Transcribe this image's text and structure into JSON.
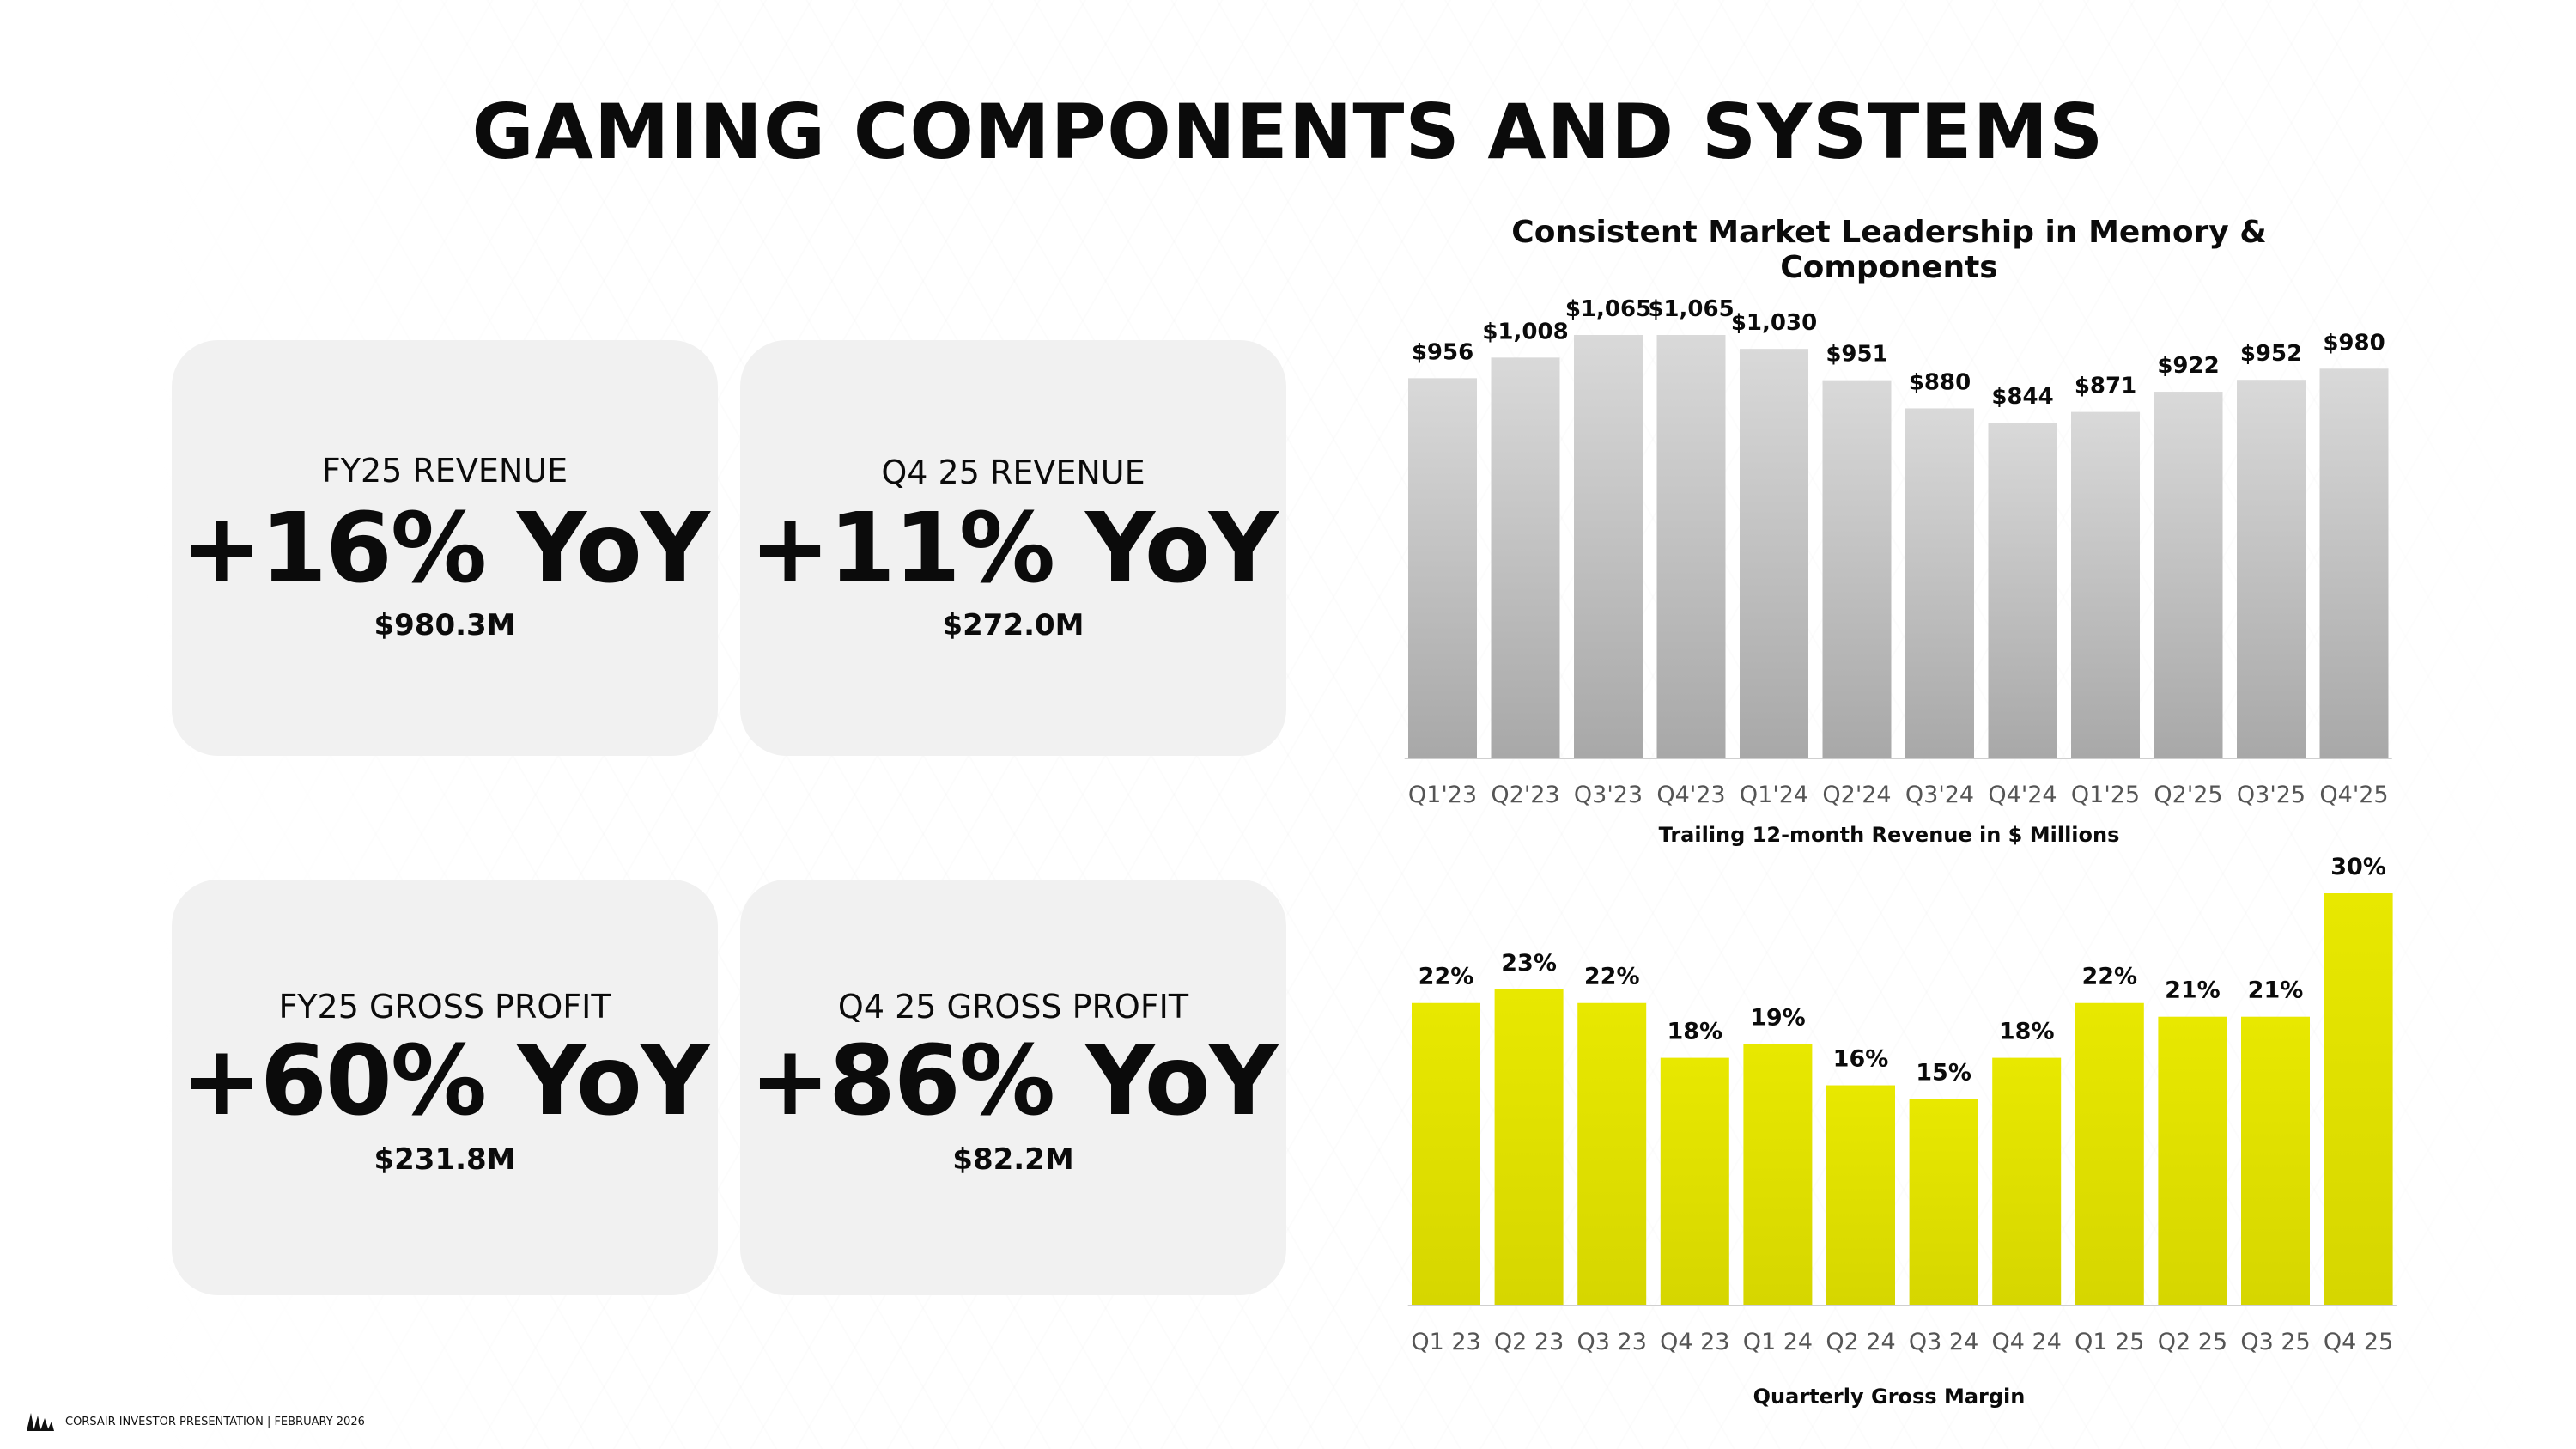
{
  "title": "GAMING COMPONENTS AND SYSTEMS",
  "cards": [
    {
      "label": "FY25 REVENUE",
      "big": "+16% YoY",
      "value": "$980.3M"
    },
    {
      "label": "Q4 25 REVENUE",
      "big": "+11% YoY",
      "value": "$272.0M"
    },
    {
      "label": "FY25 GROSS PROFIT",
      "big": "+60% YoY",
      "value": "$231.8M"
    },
    {
      "label": "Q4 25 GROSS PROFIT",
      "big": "+86% YoY",
      "value": "$82.2M"
    }
  ],
  "chart_title": "Consistent Market Leadership in Memory & Components",
  "footer": "CORSAIR INVESTOR PRESENTATION | FEBRUARY 2026",
  "chart_data": [
    {
      "type": "bar",
      "xlabel": "Trailing 12-month Revenue in $ Millions",
      "categories": [
        "Q1'23",
        "Q2'23",
        "Q3'23",
        "Q4'23",
        "Q1'24",
        "Q2'24",
        "Q3'24",
        "Q4'24",
        "Q1'25",
        "Q2'25",
        "Q3'25",
        "Q4'25"
      ],
      "values": [
        956,
        1008,
        1065,
        1065,
        1030,
        951,
        880,
        844,
        871,
        922,
        952,
        980
      ],
      "labels": [
        "$956",
        "$1,008",
        "$1,065",
        "$1,065",
        "$1,030",
        "$951",
        "$880",
        "$844",
        "$871",
        "$922",
        "$952",
        "$980"
      ],
      "ylim": [
        0,
        1065
      ],
      "color_top": "#d9d9d9",
      "color_bottom": "#a8a8a8"
    },
    {
      "type": "bar",
      "xlabel": "Quarterly Gross Margin",
      "categories": [
        "Q1 23",
        "Q2 23",
        "Q3 23",
        "Q4 23",
        "Q1 24",
        "Q2 24",
        "Q3 24",
        "Q4 24",
        "Q1 25",
        "Q2 25",
        "Q3 25",
        "Q4 25"
      ],
      "values": [
        22,
        23,
        22,
        18,
        19,
        16,
        15,
        18,
        22,
        21,
        21,
        30
      ],
      "labels": [
        "22%",
        "23%",
        "22%",
        "18%",
        "19%",
        "16%",
        "15%",
        "18%",
        "22%",
        "21%",
        "21%",
        "30%"
      ],
      "ylim": [
        0,
        30
      ],
      "color_top": "#e8e800",
      "color_bottom": "#d6d600"
    }
  ]
}
